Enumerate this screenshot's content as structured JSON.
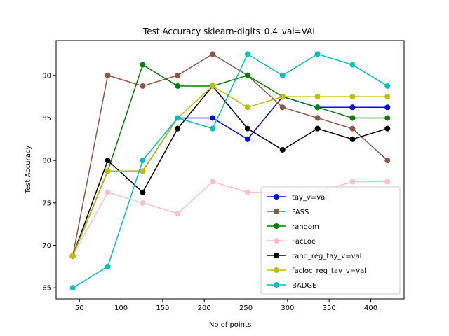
{
  "chart_data": {
    "type": "line",
    "title": "Test Accuracy sklearn-digits_0.4_val=VAL",
    "xlabel": "No of points",
    "ylabel": "Test Accuracy",
    "xlim": [
      22,
      440
    ],
    "ylim": [
      63.7,
      94.1
    ],
    "xticks": [
      50,
      100,
      150,
      200,
      250,
      300,
      350,
      400
    ],
    "yticks": [
      65,
      70,
      75,
      80,
      85,
      90
    ],
    "grid": false,
    "legend_position": "lower-right",
    "x": [
      42,
      84,
      126,
      168,
      210,
      252,
      294,
      336,
      378,
      420
    ],
    "series": [
      {
        "name": "tay_v=val",
        "color": "#0000ff",
        "values": [
          68.75,
          78.75,
          78.75,
          85.0,
          85.0,
          82.5,
          87.5,
          86.25,
          86.25,
          86.25
        ]
      },
      {
        "name": "FASS",
        "color": "#8c564b",
        "values": [
          68.75,
          90.0,
          88.75,
          90.0,
          92.5,
          90.0,
          86.25,
          85.0,
          83.75,
          80.0
        ]
      },
      {
        "name": "random",
        "color": "#008000",
        "values": [
          68.75,
          78.75,
          91.25,
          88.75,
          88.75,
          90.0,
          87.5,
          86.25,
          85.0,
          85.0
        ]
      },
      {
        "name": "FacLoc",
        "color": "#ffc0cb",
        "values": [
          68.75,
          76.25,
          75.0,
          73.75,
          77.5,
          76.25,
          76.25,
          76.25,
          77.5,
          77.5
        ]
      },
      {
        "name": "rand_reg_tay_v=val",
        "color": "#000000",
        "values": [
          68.75,
          80.0,
          76.25,
          83.75,
          88.75,
          83.75,
          81.25,
          83.75,
          82.5,
          83.75
        ]
      },
      {
        "name": "facloc_reg_tay_v=val",
        "color": "#bfbf00",
        "values": [
          68.75,
          78.75,
          78.75,
          85.0,
          88.75,
          86.25,
          87.5,
          87.5,
          87.5,
          87.5
        ]
      },
      {
        "name": "BADGE",
        "color": "#00bfbf",
        "values": [
          65.0,
          67.5,
          80.0,
          85.0,
          83.75,
          92.5,
          90.0,
          92.5,
          91.25,
          88.75
        ]
      }
    ]
  }
}
